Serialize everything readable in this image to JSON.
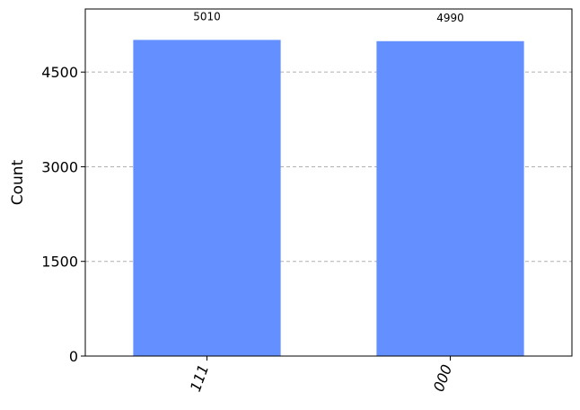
{
  "chart_data": {
    "type": "bar",
    "categories": [
      "111",
      "000"
    ],
    "values": [
      5010,
      4990
    ],
    "data_labels": [
      "5010",
      "4990"
    ],
    "title": "",
    "xlabel": "",
    "ylabel": "Count",
    "ylim": [
      0,
      5500
    ],
    "yticks": [
      0,
      1500,
      3000,
      4500
    ],
    "ytick_labels": [
      "0",
      "1500",
      "3000",
      "4500"
    ],
    "grid": "horizontal-dashed",
    "bar_color": "#648fff",
    "xtick_rotation_deg": 70
  }
}
